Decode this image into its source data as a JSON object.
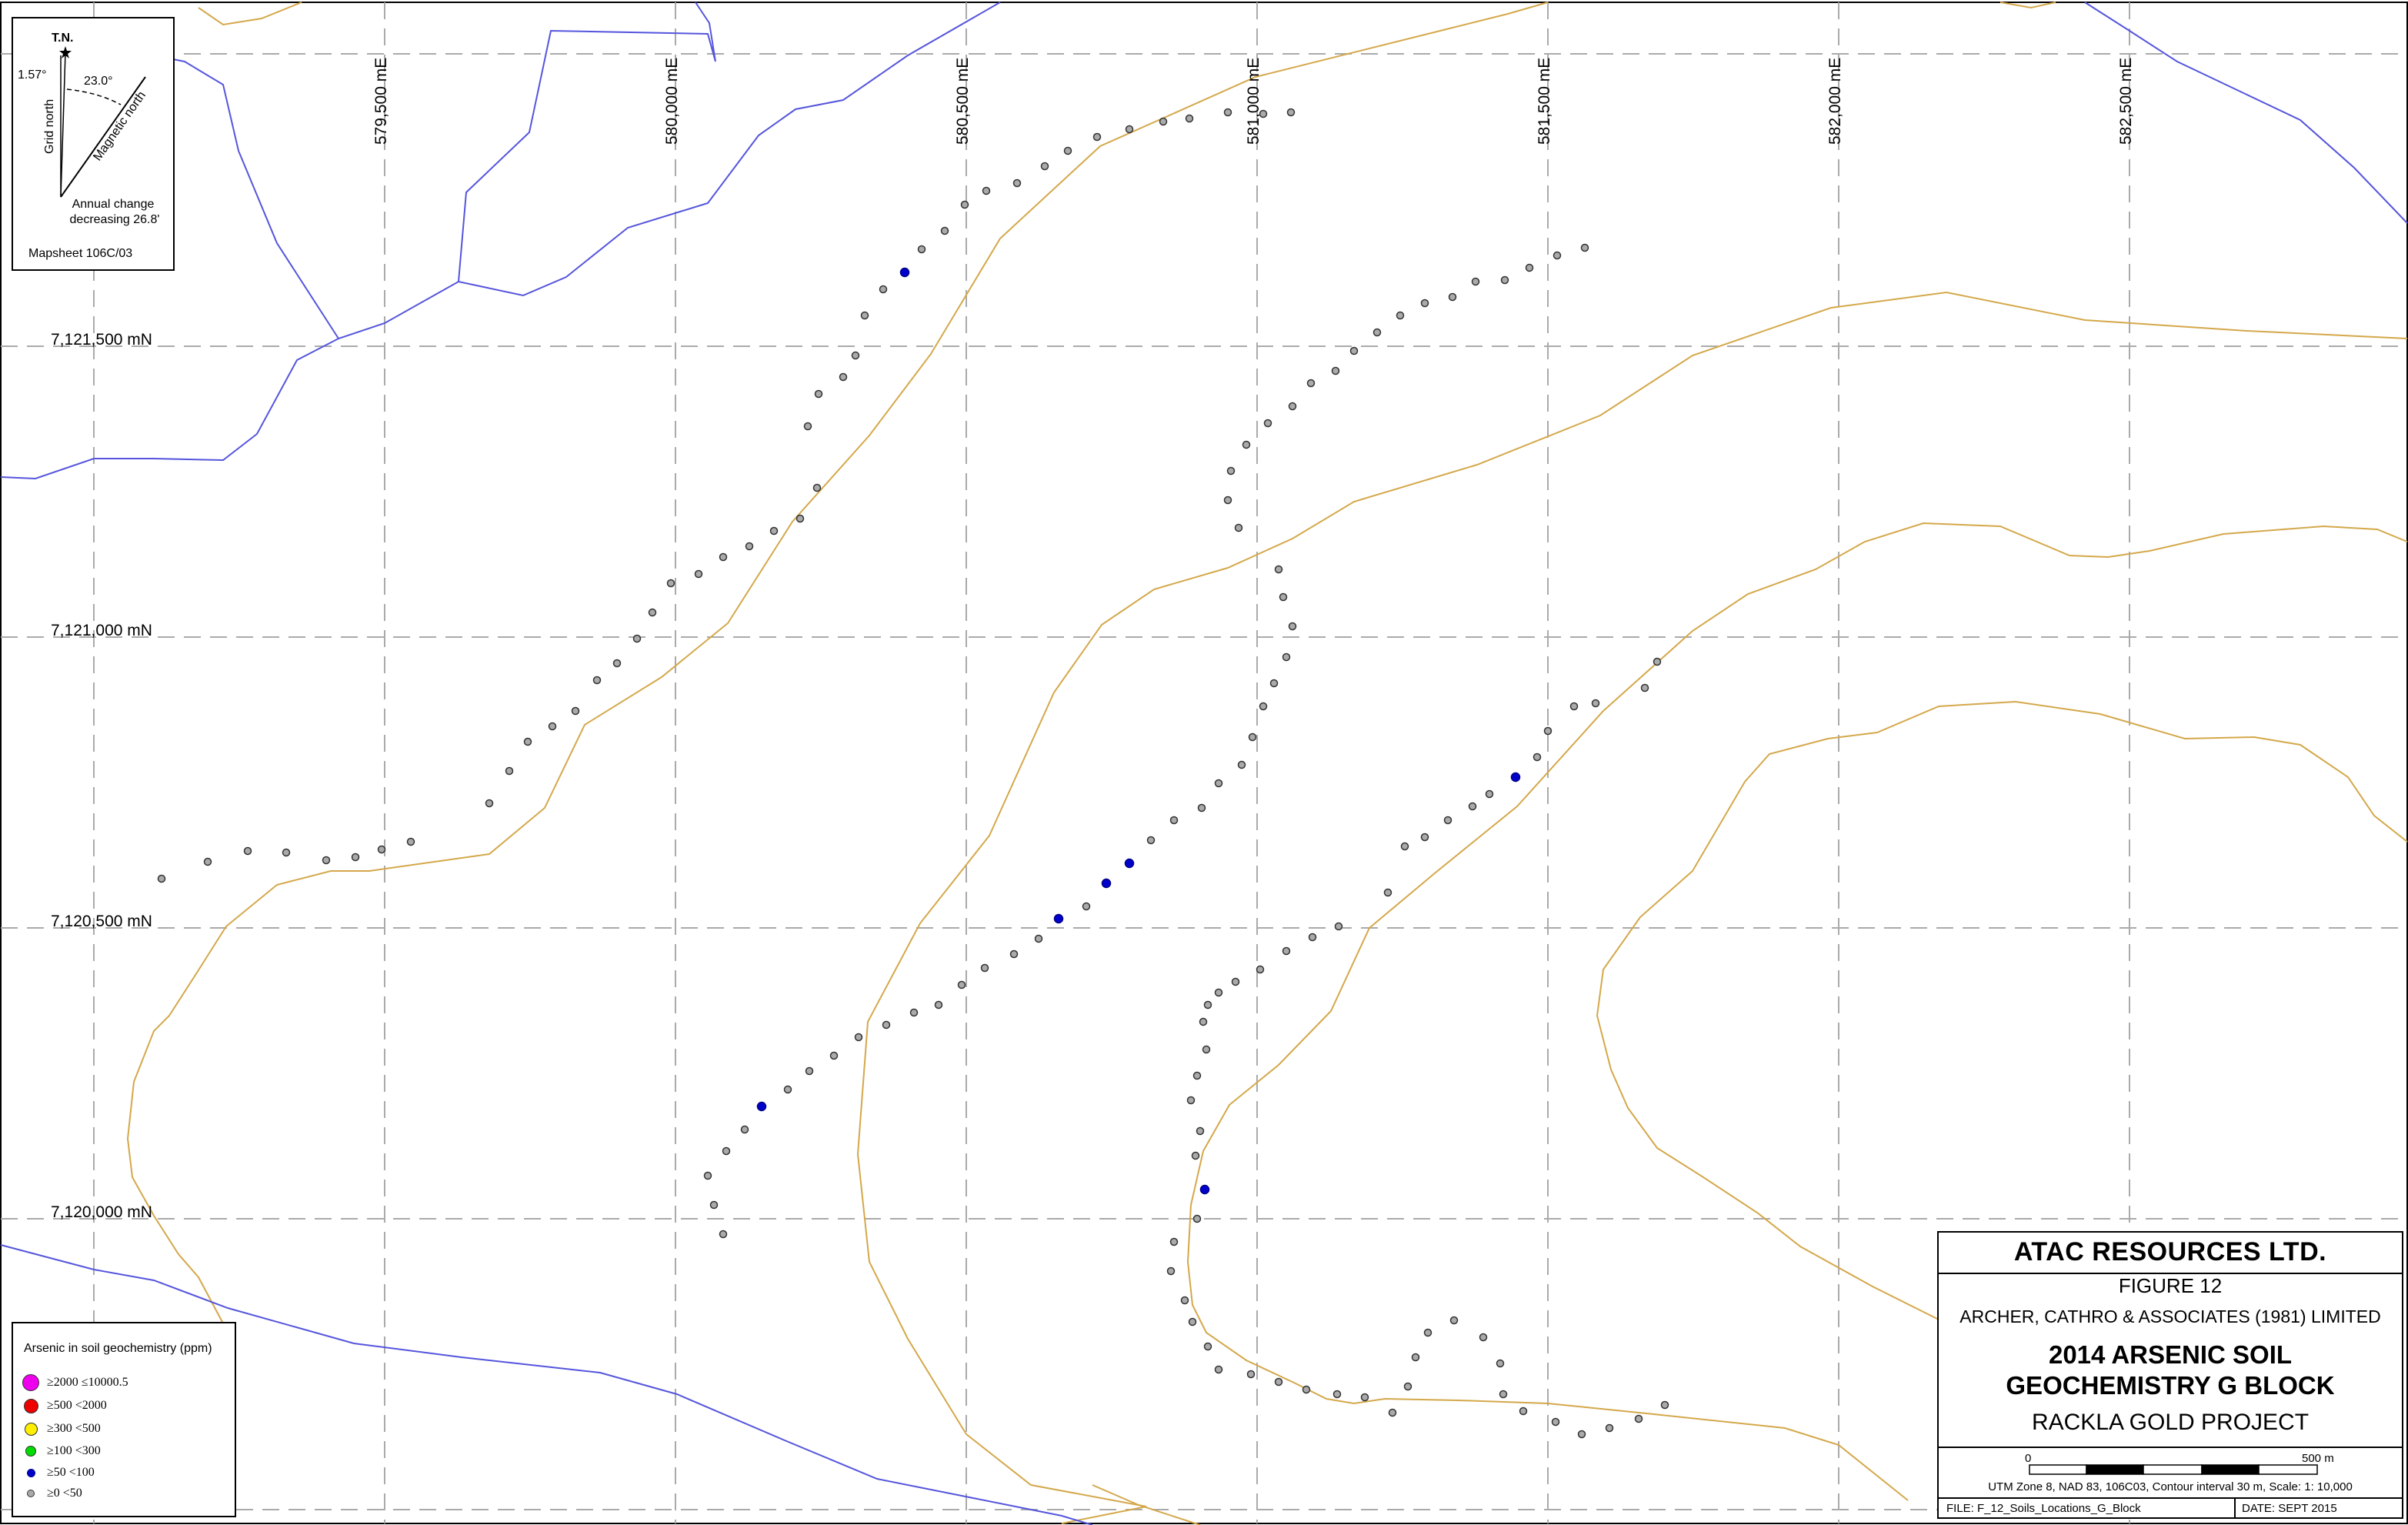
{
  "map": {
    "easting_labels": [
      "579,500 mE",
      "580,000 mE",
      "580,500 mE",
      "581,000 mE",
      "581,500 mE",
      "582,000 mE",
      "582,500 mE"
    ],
    "northing_labels": [
      "7,121,500 mN",
      "7,121,000 mN",
      "7,120,500 mN",
      "7,120,000 mN"
    ],
    "contour_color": "#d4a84b",
    "stream_color": "#5555dd",
    "grid_color": "#aaaaaa",
    "sample_color_low": "#aaaaaa",
    "sample_color_50_100": "#0000cc"
  },
  "north_arrow": {
    "true_north_label": "T.N.",
    "grid_north_label": "Grid north",
    "magnetic_north_label": "Magnetic north",
    "grid_angle": "1.57°",
    "magnetic_angle": "23.0°",
    "annual_change_line1": "Annual change",
    "annual_change_line2": "decreasing 26.8'",
    "mapsheet": "Mapsheet 106C/03"
  },
  "legend": {
    "title": "Arsenic in soil geochemistry (ppm)",
    "items": [
      {
        "label": "≥2000 ≤10000.5",
        "color": "#ee00ee"
      },
      {
        "label": "≥500 <2000",
        "color": "#ee0000"
      },
      {
        "label": "≥300 <500",
        "color": "#ffee00"
      },
      {
        "label": "≥100 <300",
        "color": "#00dd00"
      },
      {
        "label": "≥50 <100",
        "color": "#0000cc"
      },
      {
        "label": "≥0 <50",
        "color": "#aaaaaa"
      }
    ]
  },
  "title_block": {
    "company": "ATAC RESOURCES LTD.",
    "figure": "FIGURE 12",
    "firm": "ARCHER, CATHRO & ASSOCIATES (1981) LIMITED",
    "title_line1": "2014 ARSENIC SOIL",
    "title_line2": "GEOCHEMISTRY G BLOCK",
    "project": "RACKLA GOLD PROJECT",
    "scale_start": "0",
    "scale_end": "500 m",
    "utm_note": "UTM Zone 8, NAD 83, 106C03, Contour interval 30 m, Scale: 1: 10,000",
    "file": "FILE: F_12_Soils_Locations_G_Block",
    "date": "DATE: SEPT 2015"
  }
}
